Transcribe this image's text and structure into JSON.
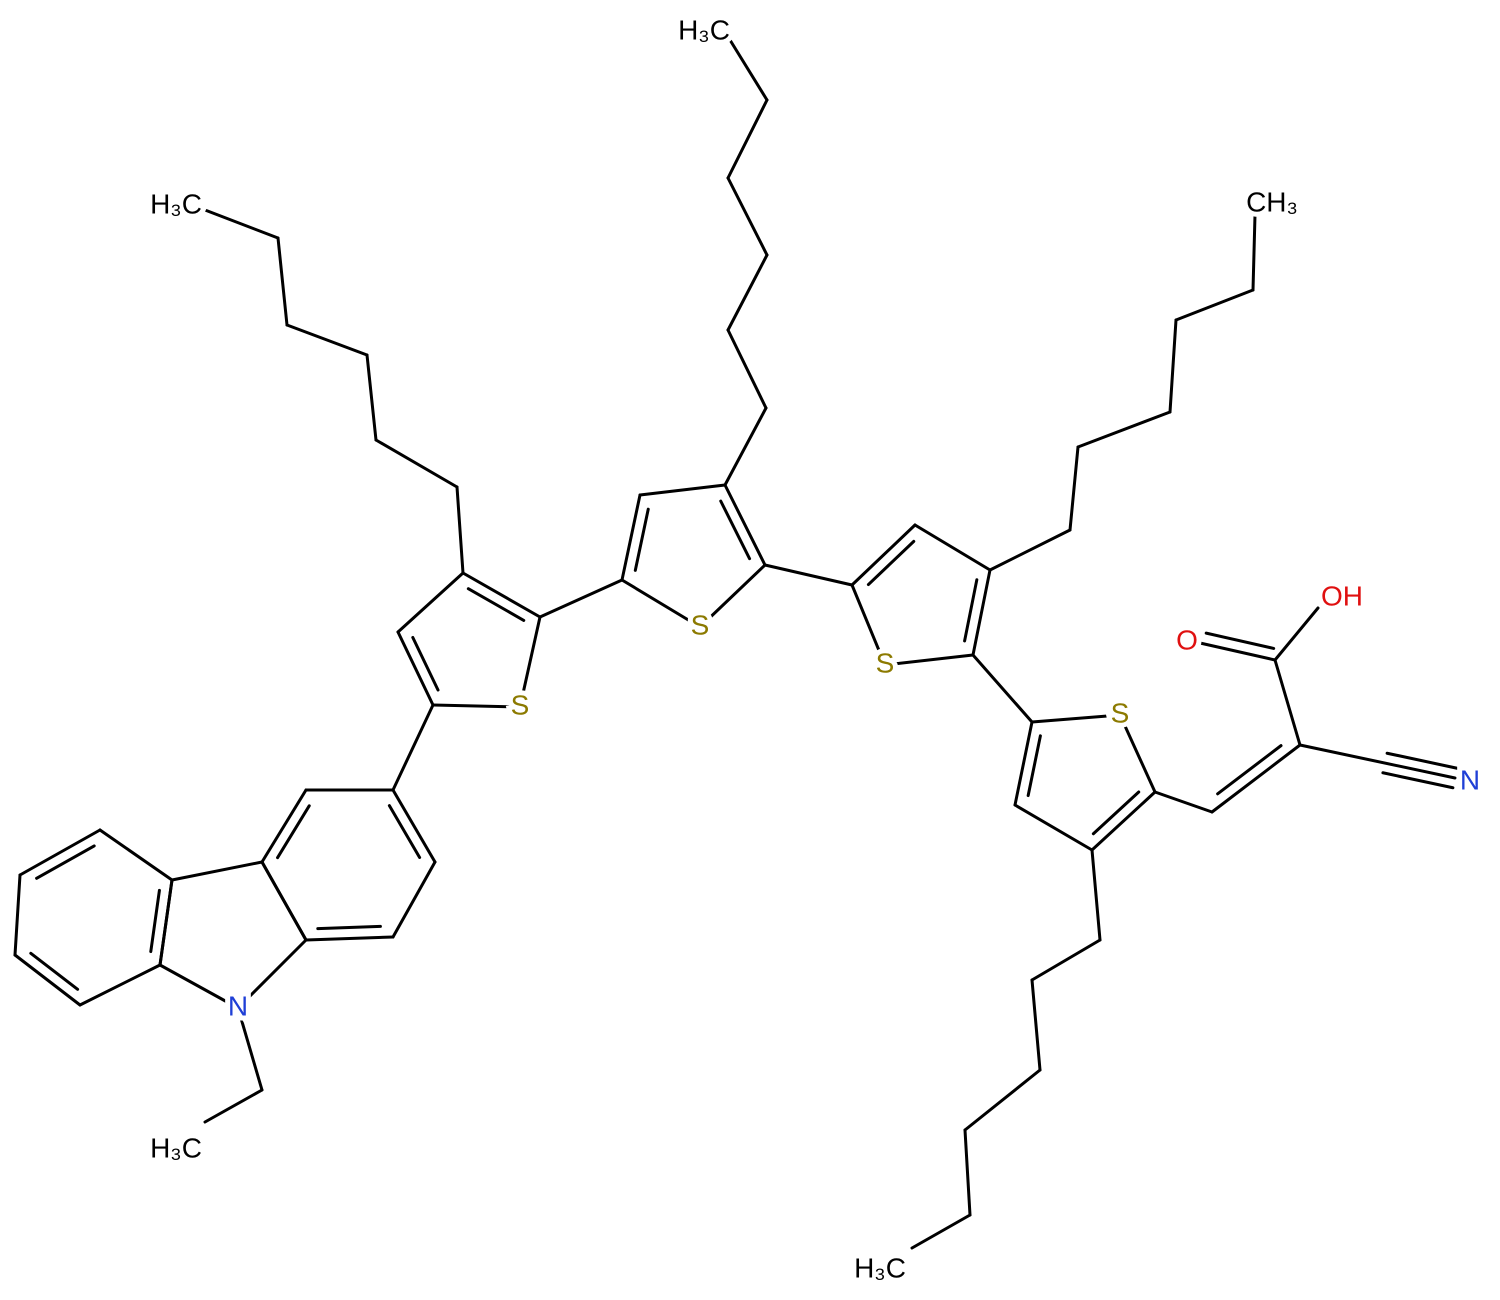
{
  "molecule": {
    "labels": [
      "H₃C",
      "H₃C",
      "CH₃",
      "H₃C",
      "H₃C",
      "S",
      "S",
      "S",
      "S",
      "N",
      "N",
      "O",
      "OH"
    ]
  }
}
